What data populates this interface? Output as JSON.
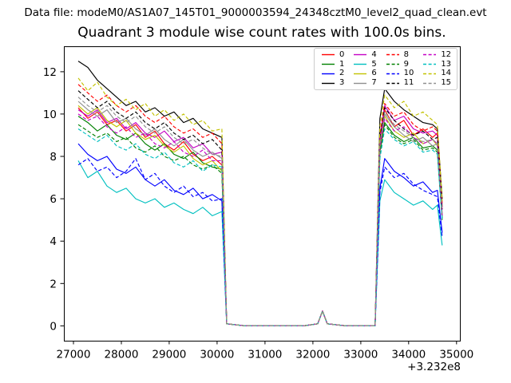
{
  "figure": {
    "datafile_label": "Data file: modeM0/AS1A07_145T01_9000003594_24348cztM0_level2_quad_clean.evt"
  },
  "chart_data": {
    "type": "line",
    "title": "Quadrant 3 module wise count rates with 100.0s bins.",
    "xlabel": "",
    "ylabel": "",
    "grid": false,
    "legend_position": "upper right",
    "legend_columns": 4,
    "x_axis": {
      "ticks": [
        27000,
        28000,
        29000,
        30000,
        31000,
        32000,
        33000,
        34000,
        35000
      ],
      "offset_text": "+3.232e8",
      "lim": [
        26800,
        35070
      ]
    },
    "y_axis": {
      "ticks": [
        0,
        2,
        4,
        6,
        8,
        10,
        12
      ],
      "lim": [
        -0.7,
        13.2
      ]
    },
    "x": [
      27100,
      27300,
      27500,
      27700,
      27900,
      28100,
      28300,
      28500,
      28700,
      28900,
      29100,
      29300,
      29500,
      29700,
      29900,
      30100,
      30200,
      30600,
      31000,
      31400,
      31800,
      32100,
      32200,
      32300,
      32700,
      33100,
      33300,
      33400,
      33500,
      33700,
      33900,
      34100,
      34300,
      34500,
      34600,
      34700
    ],
    "series": [
      {
        "name": "0",
        "color": "#ff0000",
        "style": "solid",
        "values": [
          10.3,
          9.8,
          10.1,
          9.5,
          9.7,
          9.2,
          9.5,
          8.9,
          9.2,
          8.6,
          8.3,
          8.7,
          8.1,
          7.8,
          8.0,
          7.6,
          0.1,
          0,
          0,
          0,
          0,
          0.1,
          0.7,
          0.1,
          0,
          0,
          0,
          8.7,
          10.2,
          9.4,
          9.7,
          9.0,
          9.3,
          8.9,
          9.1,
          5.6
        ]
      },
      {
        "name": "1",
        "color": "#008000",
        "style": "solid",
        "values": [
          9.9,
          9.6,
          9.2,
          9.5,
          9.0,
          8.8,
          9.1,
          8.6,
          8.3,
          8.6,
          8.1,
          7.9,
          8.2,
          7.7,
          7.5,
          7.4,
          0.1,
          0,
          0,
          0,
          0,
          0.1,
          0.7,
          0.1,
          0,
          0,
          0,
          8.2,
          9.6,
          9.0,
          8.7,
          8.9,
          8.4,
          8.5,
          8.3,
          5.1
        ]
      },
      {
        "name": "2",
        "color": "#0000ff",
        "style": "solid",
        "values": [
          8.6,
          8.1,
          7.8,
          8.0,
          7.4,
          7.2,
          7.5,
          6.9,
          6.6,
          6.9,
          6.4,
          6.2,
          6.5,
          6.0,
          6.2,
          5.9,
          0.1,
          0,
          0,
          0,
          0,
          0.1,
          0.7,
          0.1,
          0,
          0,
          0,
          6.5,
          7.9,
          7.3,
          7.0,
          6.6,
          6.8,
          6.3,
          6.4,
          4.4
        ]
      },
      {
        "name": "3",
        "color": "#000000",
        "style": "solid",
        "values": [
          12.5,
          12.2,
          11.6,
          11.2,
          10.8,
          10.4,
          10.6,
          10.1,
          10.3,
          9.9,
          10.1,
          9.6,
          9.8,
          9.3,
          9.1,
          8.9,
          0.1,
          0,
          0,
          0,
          0,
          0.1,
          0.7,
          0.1,
          0,
          0,
          0,
          9.8,
          11.2,
          10.6,
          10.2,
          9.9,
          9.6,
          9.5,
          9.3,
          6.0
        ]
      },
      {
        "name": "4",
        "color": "#c400c4",
        "style": "solid",
        "values": [
          10.2,
          9.9,
          10.2,
          9.6,
          9.8,
          9.3,
          9.6,
          9.1,
          8.9,
          9.2,
          8.7,
          8.9,
          8.4,
          8.6,
          8.1,
          8.2,
          0.1,
          0,
          0,
          0,
          0,
          0.1,
          0.7,
          0.1,
          0,
          0,
          0,
          8.9,
          10.4,
          9.7,
          9.9,
          9.3,
          9.1,
          9.2,
          9.0,
          5.5
        ]
      },
      {
        "name": "5",
        "color": "#00c0c0",
        "style": "solid",
        "values": [
          7.8,
          7.0,
          7.3,
          6.6,
          6.3,
          6.5,
          6.0,
          5.8,
          6.0,
          5.6,
          5.8,
          5.5,
          5.3,
          5.6,
          5.2,
          5.4,
          0.1,
          0,
          0,
          0,
          0,
          0.1,
          0.7,
          0.1,
          0,
          0,
          0,
          5.9,
          6.9,
          6.3,
          6.0,
          5.7,
          5.9,
          5.5,
          5.7,
          3.8
        ]
      },
      {
        "name": "6",
        "color": "#c2c200",
        "style": "solid",
        "values": [
          10.4,
          10.0,
          10.3,
          9.7,
          9.4,
          9.7,
          9.1,
          8.8,
          9.0,
          8.5,
          8.2,
          8.5,
          7.9,
          7.6,
          7.8,
          7.3,
          0.1,
          0,
          0,
          0,
          0,
          0.1,
          0.7,
          0.1,
          0,
          0,
          0,
          8.4,
          9.9,
          9.2,
          8.9,
          9.1,
          8.6,
          8.8,
          8.5,
          5.2
        ]
      },
      {
        "name": "7",
        "color": "#8f8f8f",
        "style": "solid",
        "values": [
          10.6,
          10.2,
          9.9,
          10.2,
          9.6,
          9.8,
          9.3,
          9.0,
          9.3,
          8.8,
          8.5,
          8.8,
          8.3,
          8.0,
          8.2,
          7.9,
          0.1,
          0,
          0,
          0,
          0,
          0.1,
          0.7,
          0.1,
          0,
          0,
          0,
          8.5,
          10.0,
          9.4,
          9.0,
          8.7,
          8.9,
          8.5,
          8.6,
          5.3
        ]
      },
      {
        "name": "8",
        "color": "#ff0000",
        "style": "dashed",
        "values": [
          11.4,
          11.0,
          10.6,
          10.9,
          10.4,
          10.1,
          10.4,
          9.9,
          9.6,
          9.9,
          9.4,
          9.1,
          9.3,
          8.9,
          9.1,
          8.6,
          0.1,
          0,
          0,
          0,
          0,
          0.1,
          0.7,
          0.1,
          0,
          0,
          0,
          9.0,
          10.5,
          9.9,
          10.1,
          9.5,
          9.2,
          9.4,
          9.2,
          5.8
        ]
      },
      {
        "name": "9",
        "color": "#008000",
        "style": "dashed",
        "values": [
          9.5,
          9.2,
          8.9,
          9.1,
          8.7,
          8.9,
          8.4,
          8.2,
          8.5,
          8.0,
          7.8,
          8.0,
          7.6,
          7.4,
          7.6,
          7.2,
          0.1,
          0,
          0,
          0,
          0,
          0.1,
          0.7,
          0.1,
          0,
          0,
          0,
          8.1,
          9.5,
          8.9,
          8.6,
          8.8,
          8.3,
          8.4,
          8.2,
          5.0
        ]
      },
      {
        "name": "10",
        "color": "#0000ff",
        "style": "dashed",
        "values": [
          7.6,
          7.9,
          7.3,
          7.5,
          7.0,
          7.3,
          7.9,
          6.9,
          7.2,
          6.6,
          6.3,
          6.6,
          6.1,
          6.3,
          5.9,
          6.0,
          0.1,
          0,
          0,
          0,
          0,
          0.1,
          0.7,
          0.1,
          0,
          0,
          0,
          6.3,
          7.5,
          7.0,
          7.2,
          6.7,
          6.4,
          6.2,
          6.1,
          4.2
        ]
      },
      {
        "name": "11",
        "color": "#000000",
        "style": "dashed",
        "values": [
          11.1,
          10.7,
          10.3,
          10.6,
          10.1,
          9.8,
          10.1,
          9.6,
          9.3,
          9.6,
          9.1,
          8.8,
          9.0,
          8.6,
          8.8,
          8.3,
          0.1,
          0,
          0,
          0,
          0,
          0.1,
          0.7,
          0.1,
          0,
          0,
          0,
          8.8,
          10.3,
          9.7,
          9.3,
          9.0,
          9.2,
          8.8,
          8.9,
          5.5
        ]
      },
      {
        "name": "12",
        "color": "#c400c4",
        "style": "dashed",
        "values": [
          10.0,
          9.7,
          9.9,
          9.4,
          9.1,
          9.4,
          8.9,
          9.1,
          8.6,
          8.4,
          8.7,
          8.2,
          8.0,
          8.3,
          7.8,
          7.8,
          0.1,
          0,
          0,
          0,
          0,
          0.1,
          0.7,
          0.1,
          0,
          0,
          0,
          8.4,
          9.8,
          9.2,
          9.4,
          8.9,
          8.6,
          8.8,
          8.6,
          5.2
        ]
      },
      {
        "name": "13",
        "color": "#00c0c0",
        "style": "dashed",
        "values": [
          9.3,
          9.0,
          8.7,
          9.0,
          8.5,
          8.3,
          8.6,
          8.1,
          7.9,
          8.2,
          7.7,
          7.5,
          7.8,
          7.3,
          7.6,
          7.5,
          0.1,
          0,
          0,
          0,
          0,
          0.1,
          0.7,
          0.1,
          0,
          0,
          0,
          7.9,
          9.3,
          8.8,
          8.5,
          8.7,
          8.2,
          8.3,
          8.1,
          5.0
        ]
      },
      {
        "name": "14",
        "color": "#c2c200",
        "style": "dashed",
        "values": [
          11.7,
          11.1,
          11.5,
          10.8,
          10.4,
          10.7,
          10.2,
          10.5,
          9.9,
          10.2,
          9.7,
          10.0,
          9.5,
          9.7,
          9.2,
          9.3,
          0.1,
          0,
          0,
          0,
          0,
          0.1,
          0.7,
          0.1,
          0,
          0,
          0,
          9.4,
          10.9,
          10.3,
          10.6,
          9.9,
          10.1,
          9.7,
          9.5,
          5.9
        ]
      },
      {
        "name": "15",
        "color": "#8f8f8f",
        "style": "dashed",
        "values": [
          10.8,
          10.4,
          10.1,
          10.4,
          9.9,
          9.6,
          9.9,
          9.4,
          9.1,
          9.4,
          8.9,
          8.6,
          8.8,
          8.4,
          8.1,
          8.0,
          0.1,
          0,
          0,
          0,
          0,
          0.1,
          0.7,
          0.1,
          0,
          0,
          0,
          8.6,
          10.1,
          9.5,
          9.2,
          8.9,
          8.7,
          8.8,
          8.6,
          5.3
        ]
      }
    ]
  }
}
